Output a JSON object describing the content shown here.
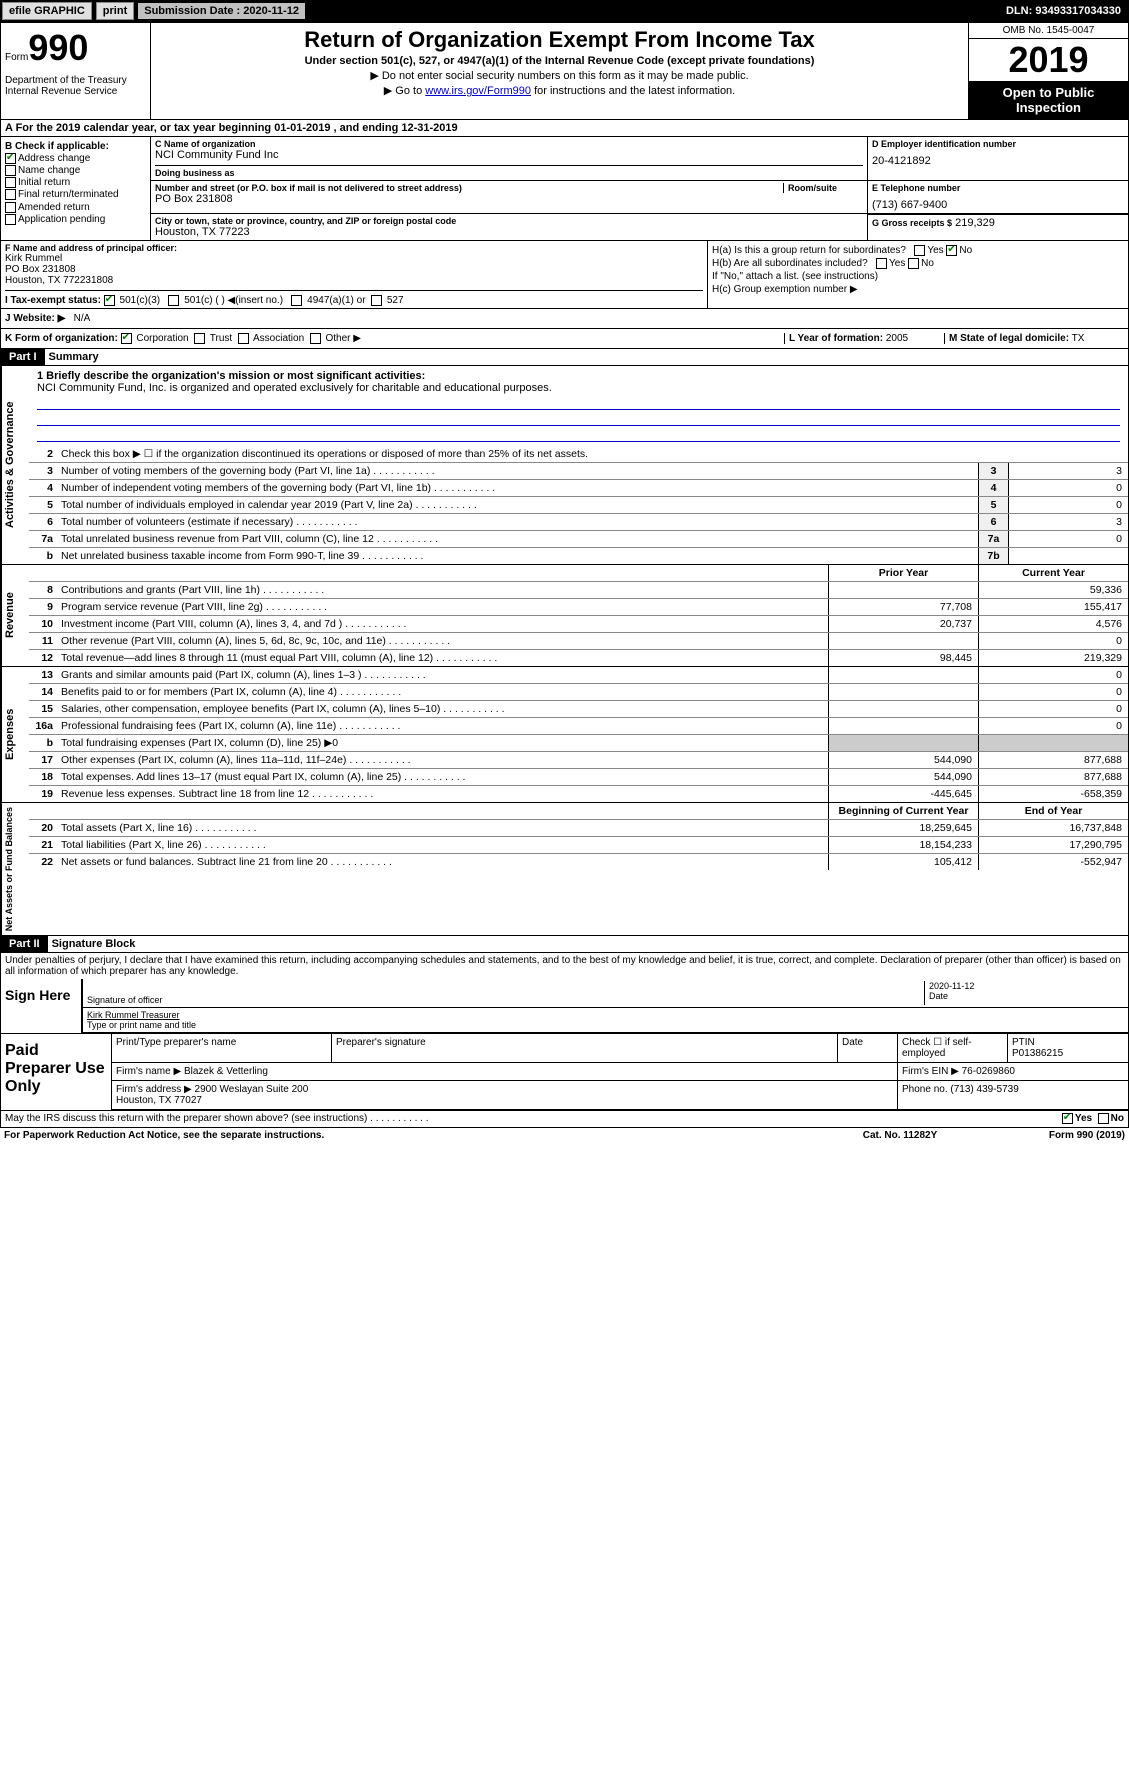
{
  "topbar": {
    "efile": "efile GRAPHIC",
    "print": "print",
    "sub_label": "Submission Date :",
    "sub_date": "2020-11-12",
    "dln": "DLN: 93493317034330"
  },
  "header": {
    "form": "Form",
    "num": "990",
    "dept": "Department of the Treasury\nInternal Revenue Service",
    "title": "Return of Organization Exempt From Income Tax",
    "sub": "Under section 501(c), 527, or 4947(a)(1) of the Internal Revenue Code (except private foundations)",
    "arrow1": "▶ Do not enter social security numbers on this form as it may be made public.",
    "arrow2_pre": "▶ Go to ",
    "arrow2_link": "www.irs.gov/Form990",
    "arrow2_post": " for instructions and the latest information.",
    "omb": "OMB No. 1545-0047",
    "year": "2019",
    "open": "Open to Public Inspection"
  },
  "row_a": "A For the 2019 calendar year, or tax year beginning 01-01-2019   , and ending 12-31-2019",
  "b": {
    "label": "B Check if applicable:",
    "items": [
      "Address change",
      "Name change",
      "Initial return",
      "Final return/terminated",
      "Amended return",
      "Application pending"
    ],
    "checked": [
      true,
      false,
      false,
      false,
      false,
      false
    ]
  },
  "c": {
    "name_lbl": "C Name of organization",
    "name": "NCI Community Fund Inc",
    "dba_lbl": "Doing business as",
    "dba": "",
    "addr_lbl": "Number and street (or P.O. box if mail is not delivered to street address)",
    "room_lbl": "Room/suite",
    "addr": "PO Box 231808",
    "city_lbl": "City or town, state or province, country, and ZIP or foreign postal code",
    "city": "Houston, TX  77223"
  },
  "d": {
    "lbl": "D Employer identification number",
    "val": "20-4121892"
  },
  "e": {
    "lbl": "E Telephone number",
    "val": "(713) 667-9400"
  },
  "g": {
    "lbl": "G Gross receipts $",
    "val": "219,329"
  },
  "f": {
    "lbl": "F  Name and address of principal officer:",
    "name": "Kirk Rummel",
    "addr1": "PO Box 231808",
    "addr2": "Houston, TX  772231808"
  },
  "h": {
    "a": "H(a)  Is this a group return for subordinates?",
    "a_yes": false,
    "a_no": true,
    "b": "H(b)  Are all subordinates included?",
    "b_note": "If \"No,\" attach a list. (see instructions)",
    "c": "H(c)  Group exemption number ▶"
  },
  "i": {
    "lbl": "I   Tax-exempt status:",
    "c3": "501(c)(3)",
    "c": "501(c) (  ) ◀(insert no.)",
    "a1": "4947(a)(1) or",
    "s527": "527",
    "c3_checked": true
  },
  "j": {
    "lbl": "J   Website: ▶",
    "val": "N/A"
  },
  "k": {
    "lbl": "K Form of organization:",
    "corp": "Corporation",
    "trust": "Trust",
    "assoc": "Association",
    "other": "Other ▶",
    "corp_checked": true
  },
  "l": {
    "lbl": "L Year of formation:",
    "val": "2005"
  },
  "m": {
    "lbl": "M State of legal domicile:",
    "val": "TX"
  },
  "part1": {
    "hdr": "Part I",
    "title": "Summary"
  },
  "mission": {
    "lbl": "1  Briefly describe the organization's mission or most significant activities:",
    "text": "NCI Community Fund, Inc. is organized and operated exclusively for charitable and educational purposes."
  },
  "summary_lines": [
    {
      "n": "2",
      "d": "Check this box ▶ ☐  if the organization discontinued its operations or disposed of more than 25% of its net assets."
    },
    {
      "n": "3",
      "d": "Number of voting members of the governing body (Part VI, line 1a)",
      "box": "3",
      "v": "3"
    },
    {
      "n": "4",
      "d": "Number of independent voting members of the governing body (Part VI, line 1b)",
      "box": "4",
      "v": "0"
    },
    {
      "n": "5",
      "d": "Total number of individuals employed in calendar year 2019 (Part V, line 2a)",
      "box": "5",
      "v": "0"
    },
    {
      "n": "6",
      "d": "Total number of volunteers (estimate if necessary)",
      "box": "6",
      "v": "3"
    },
    {
      "n": "7a",
      "d": "Total unrelated business revenue from Part VIII, column (C), line 12",
      "box": "7a",
      "v": "0"
    },
    {
      "n": "b",
      "d": "Net unrelated business taxable income from Form 990-T, line 39",
      "box": "7b",
      "v": ""
    }
  ],
  "rev_hdr": {
    "prior": "Prior Year",
    "curr": "Current Year"
  },
  "revenue": [
    {
      "n": "8",
      "d": "Contributions and grants (Part VIII, line 1h)",
      "p": "",
      "c": "59,336"
    },
    {
      "n": "9",
      "d": "Program service revenue (Part VIII, line 2g)",
      "p": "77,708",
      "c": "155,417"
    },
    {
      "n": "10",
      "d": "Investment income (Part VIII, column (A), lines 3, 4, and 7d )",
      "p": "20,737",
      "c": "4,576"
    },
    {
      "n": "11",
      "d": "Other revenue (Part VIII, column (A), lines 5, 6d, 8c, 9c, 10c, and 11e)",
      "p": "",
      "c": "0"
    },
    {
      "n": "12",
      "d": "Total revenue—add lines 8 through 11 (must equal Part VIII, column (A), line 12)",
      "p": "98,445",
      "c": "219,329"
    }
  ],
  "expenses": [
    {
      "n": "13",
      "d": "Grants and similar amounts paid (Part IX, column (A), lines 1–3 )",
      "p": "",
      "c": "0"
    },
    {
      "n": "14",
      "d": "Benefits paid to or for members (Part IX, column (A), line 4)",
      "p": "",
      "c": "0"
    },
    {
      "n": "15",
      "d": "Salaries, other compensation, employee benefits (Part IX, column (A), lines 5–10)",
      "p": "",
      "c": "0"
    },
    {
      "n": "16a",
      "d": "Professional fundraising fees (Part IX, column (A), line 11e)",
      "p": "",
      "c": "0"
    },
    {
      "n": "b",
      "d": "Total fundraising expenses (Part IX, column (D), line 25) ▶0",
      "p": null,
      "c": null
    },
    {
      "n": "17",
      "d": "Other expenses (Part IX, column (A), lines 11a–11d, 11f–24e)",
      "p": "544,090",
      "c": "877,688"
    },
    {
      "n": "18",
      "d": "Total expenses. Add lines 13–17 (must equal Part IX, column (A), line 25)",
      "p": "544,090",
      "c": "877,688"
    },
    {
      "n": "19",
      "d": "Revenue less expenses. Subtract line 18 from line 12",
      "p": "-445,645",
      "c": "-658,359"
    }
  ],
  "na_hdr": {
    "prior": "Beginning of Current Year",
    "curr": "End of Year"
  },
  "netassets": [
    {
      "n": "20",
      "d": "Total assets (Part X, line 16)",
      "p": "18,259,645",
      "c": "16,737,848"
    },
    {
      "n": "21",
      "d": "Total liabilities (Part X, line 26)",
      "p": "18,154,233",
      "c": "17,290,795"
    },
    {
      "n": "22",
      "d": "Net assets or fund balances. Subtract line 21 from line 20",
      "p": "105,412",
      "c": "-552,947"
    }
  ],
  "part2": {
    "hdr": "Part II",
    "title": "Signature Block"
  },
  "perjury": "Under penalties of perjury, I declare that I have examined this return, including accompanying schedules and statements, and to the best of my knowledge and belief, it is true, correct, and complete. Declaration of preparer (other than officer) is based on all information of which preparer has any knowledge.",
  "sign": {
    "here": "Sign Here",
    "sig_lbl": "Signature of officer",
    "date": "2020-11-12",
    "date_lbl": "Date",
    "name": "Kirk Rummel Treasurer",
    "name_lbl": "Type or print name and title"
  },
  "paid": {
    "lbl": "Paid Preparer Use Only",
    "h1": "Print/Type preparer's name",
    "h2": "Preparer's signature",
    "h3": "Date",
    "h4": "Check ☐ if self-employed",
    "h5": "PTIN",
    "ptin": "P01386215",
    "firm_lbl": "Firm's name    ▶",
    "firm": "Blazek & Vetterling",
    "ein_lbl": "Firm's EIN ▶",
    "ein": "76-0269860",
    "addr_lbl": "Firm's address ▶",
    "addr": "2900 Weslayan Suite 200\nHouston, TX  77027",
    "phone_lbl": "Phone no.",
    "phone": "(713) 439-5739"
  },
  "discuss": {
    "q": "May the IRS discuss this return with the preparer shown above? (see instructions)",
    "yes": true,
    "no": false
  },
  "footer": {
    "pra": "For Paperwork Reduction Act Notice, see the separate instructions.",
    "cat": "Cat. No. 11282Y",
    "form": "Form 990 (2019)"
  },
  "sections": {
    "gov": "Activities & Governance",
    "rev": "Revenue",
    "exp": "Expenses",
    "na": "Net Assets or Fund Balances"
  }
}
